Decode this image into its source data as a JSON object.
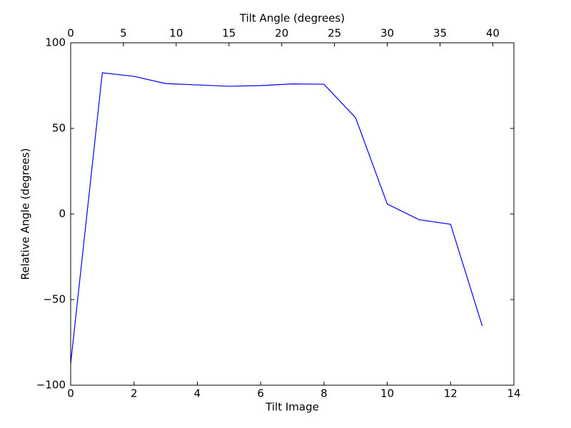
{
  "chart_data": {
    "type": "line",
    "xlabel": "Tilt Image",
    "ylabel": "Relative Angle (degrees)",
    "x2label": "Tilt Angle (degrees)",
    "x": [
      0,
      1,
      2,
      3,
      4,
      5,
      6,
      7,
      8,
      9,
      10,
      11,
      12,
      13
    ],
    "values": [
      -87.5,
      82.5,
      80.4,
      76.2,
      75.4,
      74.6,
      75,
      76,
      75.8,
      56.2,
      5.8,
      -3.3,
      -6,
      -65.4
    ],
    "color": "#0000ff",
    "xlim": [
      0,
      14
    ],
    "xticks": [
      0,
      2,
      4,
      6,
      8,
      10,
      12,
      14
    ],
    "x2lim": [
      0,
      42
    ],
    "x2ticks": [
      0,
      5,
      10,
      15,
      20,
      25,
      30,
      35,
      40
    ],
    "ylim": [
      -100,
      100
    ],
    "yticks": [
      {
        "value": -100,
        "label": "−100"
      },
      {
        "value": -50,
        "label": "−50"
      },
      0,
      50,
      100
    ],
    "grid": false
  }
}
